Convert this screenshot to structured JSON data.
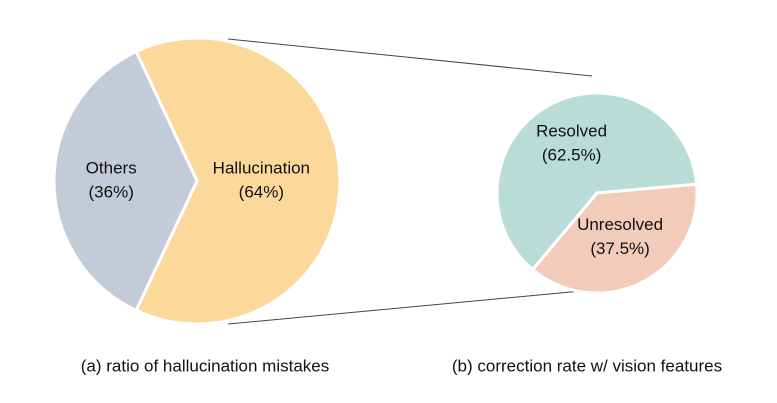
{
  "chart_data": [
    {
      "type": "pie",
      "title": "(a) ratio of hallucination mistakes",
      "categories": [
        "Hallucination",
        "Others"
      ],
      "values": [
        64,
        36
      ],
      "value_labels": [
        "(64%)",
        "(36%)"
      ],
      "colors": [
        "#fdd89b",
        "#c3cbd8"
      ]
    },
    {
      "type": "pie",
      "title": "(b) correction rate w/ vision features",
      "categories": [
        "Resolved",
        "Unresolved"
      ],
      "values": [
        62.5,
        37.5
      ],
      "value_labels": [
        "(62.5%)",
        "(37.5%)"
      ],
      "colors": [
        "#badcd6",
        "#f3cbbb"
      ]
    }
  ]
}
